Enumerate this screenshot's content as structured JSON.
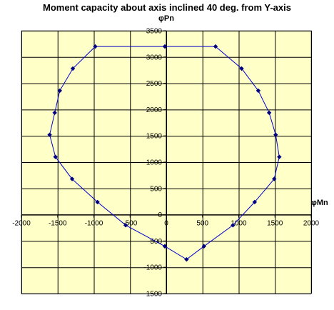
{
  "chart_data": {
    "type": "scatter",
    "title": "Moment capacity about axis inclined 40 deg. from Y-axis",
    "xlabel": "φMn",
    "ylabel": "φPn",
    "xlim": [
      -2000,
      2000
    ],
    "ylim": [
      -1500,
      3500
    ],
    "x_ticks": [
      -2000,
      -1500,
      -1000,
      -500,
      0,
      500,
      1000,
      1500,
      2000
    ],
    "y_ticks": [
      -1500,
      -1000,
      -500,
      0,
      500,
      1000,
      1500,
      2000,
      2500,
      3000,
      3500
    ],
    "grid": true,
    "plot_background": "#ffffc8",
    "line_color": "#0000cc",
    "marker_color": "#000080",
    "series": [
      {
        "points": [
          {
            "x": 680,
            "y": 3200
          },
          {
            "x": 1040,
            "y": 2780
          },
          {
            "x": 1270,
            "y": 2360
          },
          {
            "x": 1420,
            "y": 1940
          },
          {
            "x": 1510,
            "y": 1520
          },
          {
            "x": 1560,
            "y": 1100
          },
          {
            "x": 1490,
            "y": 680
          },
          {
            "x": 1220,
            "y": 240
          },
          {
            "x": 920,
            "y": -200
          },
          {
            "x": 520,
            "y": -600
          },
          {
            "x": 280,
            "y": -850
          },
          {
            "x": -20,
            "y": -600
          },
          {
            "x": -560,
            "y": -200
          },
          {
            "x": -950,
            "y": 240
          },
          {
            "x": -1300,
            "y": 680
          },
          {
            "x": -1530,
            "y": 1100
          },
          {
            "x": -1610,
            "y": 1520
          },
          {
            "x": -1540,
            "y": 1940
          },
          {
            "x": -1470,
            "y": 2360
          },
          {
            "x": -1290,
            "y": 2780
          },
          {
            "x": -980,
            "y": 3200
          },
          {
            "x": -20,
            "y": 3200
          },
          {
            "x": 680,
            "y": 3200
          }
        ]
      }
    ]
  }
}
